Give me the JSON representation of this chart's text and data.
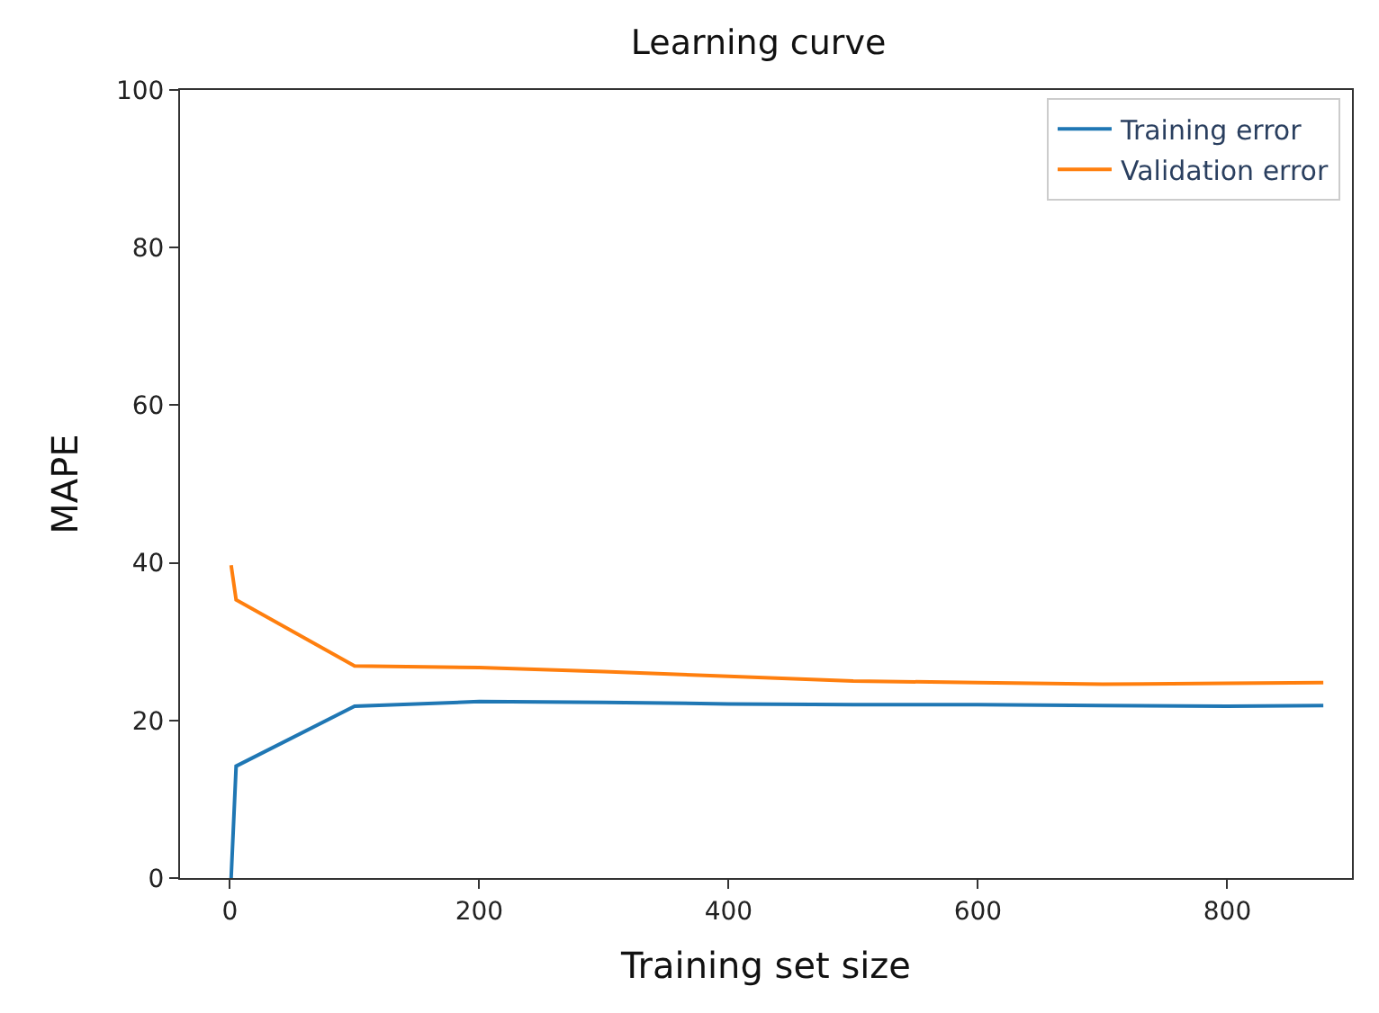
{
  "chart_data": {
    "type": "line",
    "title": "Learning curve",
    "xlabel": "Training set size",
    "ylabel": "MAPE",
    "x": [
      1,
      5,
      100,
      200,
      300,
      400,
      500,
      600,
      700,
      800,
      877
    ],
    "series": [
      {
        "name": "Training error",
        "color": "#1f77b4",
        "values": [
          0,
          14.2,
          21.8,
          22.4,
          22.3,
          22.1,
          22.0,
          22.0,
          21.9,
          21.8,
          21.9
        ]
      },
      {
        "name": "Validation error",
        "color": "#ff7f0e",
        "values": [
          39.7,
          35.3,
          26.9,
          26.7,
          26.2,
          25.6,
          25.0,
          24.8,
          24.6,
          24.7,
          24.8
        ]
      }
    ],
    "xlim": [
      -40,
      900
    ],
    "xticks": [
      0,
      200,
      400,
      600,
      800
    ],
    "ylim": [
      0,
      100
    ],
    "yticks": [
      0,
      20,
      40,
      60,
      80,
      100
    ],
    "legend": "top right",
    "marker": "none",
    "line_style": "solid"
  }
}
